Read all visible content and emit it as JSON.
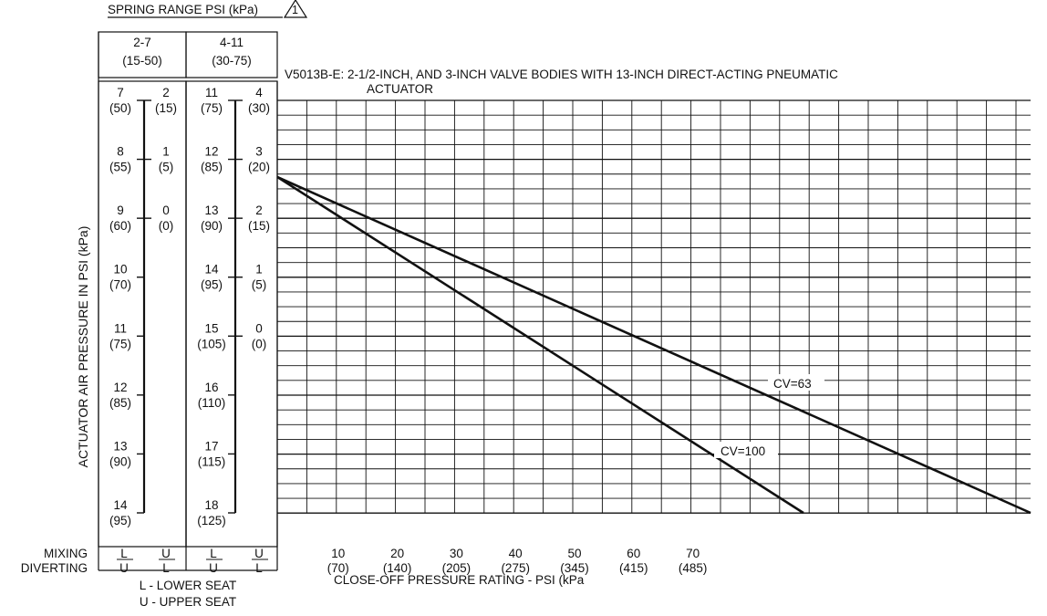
{
  "spring_range": {
    "title": "SPRING RANGE PSI (kPa)",
    "note_symbol": "1",
    "columns": [
      {
        "header_psi": "2-7",
        "header_kpa": "(15-50)",
        "scale_left": [
          {
            "psi": "7",
            "kpa": "(50)"
          },
          {
            "psi": "8",
            "kpa": "(55)"
          },
          {
            "psi": "9",
            "kpa": "(60)"
          },
          {
            "psi": "10",
            "kpa": "(70)"
          },
          {
            "psi": "11",
            "kpa": "(75)"
          },
          {
            "psi": "12",
            "kpa": "(85)"
          },
          {
            "psi": "13",
            "kpa": "(90)"
          },
          {
            "psi": "14",
            "kpa": "(95)"
          }
        ],
        "scale_right": [
          {
            "psi": "2",
            "kpa": "(15)"
          },
          {
            "psi": "1",
            "kpa": "(5)"
          },
          {
            "psi": "0",
            "kpa": "(0)"
          }
        ],
        "mixing": "L",
        "mixing_right": "U",
        "diverting": "U",
        "diverting_right": "L"
      },
      {
        "header_psi": "4-11",
        "header_kpa": "(30-75)",
        "scale_left": [
          {
            "psi": "11",
            "kpa": "(75)"
          },
          {
            "psi": "12",
            "kpa": "(85)"
          },
          {
            "psi": "13",
            "kpa": "(90)"
          },
          {
            "psi": "14",
            "kpa": "(95)"
          },
          {
            "psi": "15",
            "kpa": "(105)"
          },
          {
            "psi": "16",
            "kpa": "(110)"
          },
          {
            "psi": "17",
            "kpa": "(115)"
          },
          {
            "psi": "18",
            "kpa": "(125)"
          }
        ],
        "scale_right": [
          {
            "psi": "4",
            "kpa": "(30)"
          },
          {
            "psi": "3",
            "kpa": "(20)"
          },
          {
            "psi": "2",
            "kpa": "(15)"
          },
          {
            "psi": "1",
            "kpa": "(5)"
          },
          {
            "psi": "0",
            "kpa": "(0)"
          }
        ],
        "mixing": "L",
        "mixing_right": "U",
        "diverting": "U",
        "diverting_right": "L"
      }
    ],
    "mixing_label": "MIXING",
    "diverting_label": "DIVERTING",
    "legend_lower": "L - LOWER SEAT",
    "legend_upper": "U - UPPER SEAT"
  },
  "chart_data": {
    "type": "line",
    "title": "V5013B-E: 2-1/2-INCH, AND 3-INCH VALVE BODIES WITH 13-INCH DIRECT-ACTING PNEUMATIC",
    "title_line2": "ACTUATOR",
    "ylabel": "ACTUATOR AIR PRESSURE IN PSI (kPa)",
    "xlabel": "CLOSE-OFF PRESSURE RATING - PSI (kPa",
    "x_ticks": [
      {
        "psi": "10",
        "kpa": "(70)",
        "value": 10
      },
      {
        "psi": "20",
        "kpa": "(140)",
        "value": 20
      },
      {
        "psi": "30",
        "kpa": "(205)",
        "value": 30
      },
      {
        "psi": "40",
        "kpa": "(275)",
        "value": 40
      },
      {
        "psi": "50",
        "kpa": "(345)",
        "value": 50
      },
      {
        "psi": "60",
        "kpa": "(415)",
        "value": 60
      },
      {
        "psi": "70",
        "kpa": "(485)",
        "value": 70
      }
    ],
    "xlim": [
      0,
      126
    ],
    "ylim_psi_2_7": [
      7,
      14
    ],
    "grid": true,
    "series": [
      {
        "name": "CV=63",
        "x": [
          0,
          126
        ],
        "y_psi_2_7": [
          8.3,
          14
        ]
      },
      {
        "name": "CV=100",
        "x": [
          0,
          88
        ],
        "y_psi_2_7": [
          8.3,
          14
        ]
      }
    ]
  }
}
